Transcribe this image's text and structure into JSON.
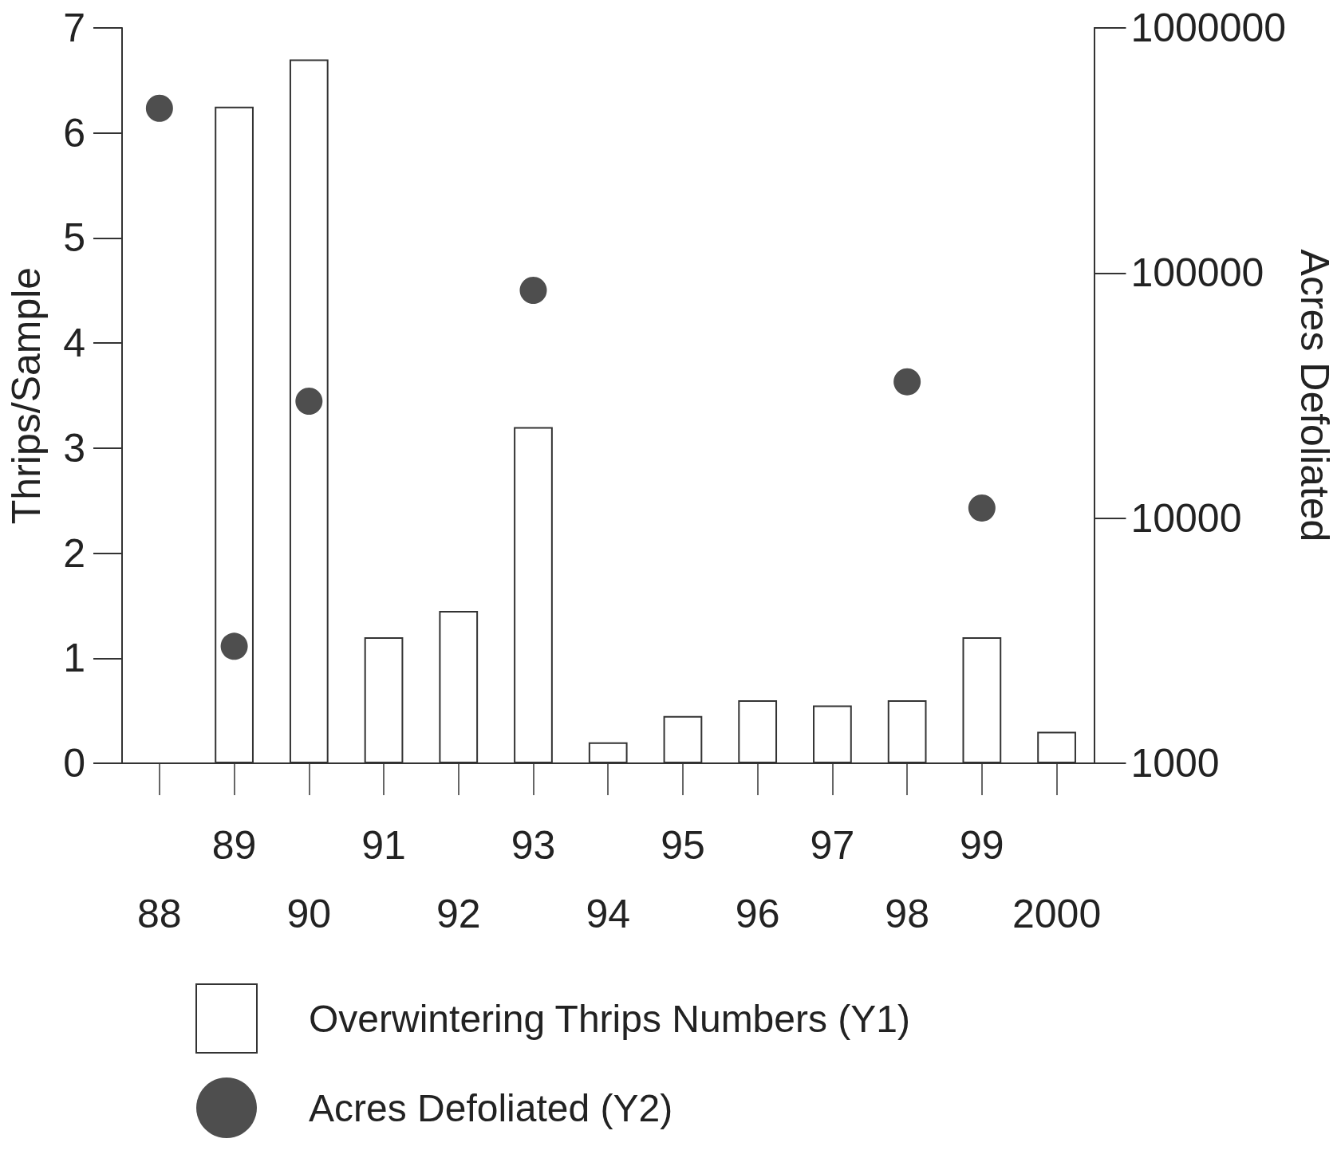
{
  "chart_data": {
    "type": "bar",
    "ylabel": "Thrips/Sample",
    "y2label": "Acres Defoliated",
    "categories": [
      "88",
      "89",
      "90",
      "91",
      "92",
      "93",
      "94",
      "95",
      "96",
      "97",
      "98",
      "99",
      "2000"
    ],
    "series": [
      {
        "name": "Overwintering Thrips Numbers (Y1)",
        "color": "#ffffff",
        "values": [
          null,
          6.25,
          6.7,
          1.2,
          1.45,
          3.2,
          0.2,
          0.45,
          0.6,
          0.55,
          0.6,
          1.2,
          0.3
        ]
      },
      {
        "name": "Acres Defoliated (Y2)",
        "type": "scatter",
        "axis": "y2",
        "color": "#222222",
        "values": [
          470000,
          3000,
          30000,
          null,
          null,
          85000,
          null,
          null,
          null,
          null,
          36000,
          11000,
          null
        ]
      }
    ],
    "ylim": [
      0,
      7
    ],
    "yticks": [
      0,
      1,
      2,
      3,
      4,
      5,
      6,
      7
    ],
    "y2lim": [
      1000,
      1000000
    ],
    "y2ticks": [
      1000,
      10000,
      100000,
      1000000
    ],
    "log": "y2",
    "grid": false,
    "legend": "bottom",
    "marker": "circle"
  }
}
